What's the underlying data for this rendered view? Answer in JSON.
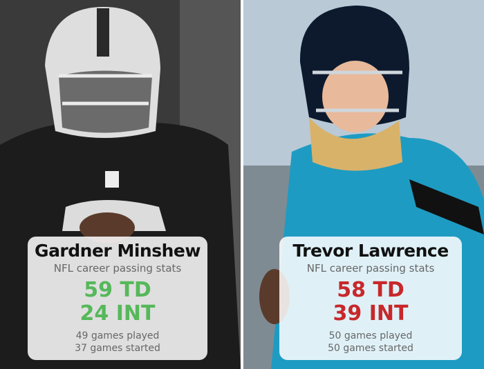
{
  "players": [
    {
      "name": "Gardner Minshew",
      "subtitle": "NFL career passing stats",
      "touchdowns": "59 TD",
      "interceptions": "24 INT",
      "games_played": "49 games played",
      "games_started": "37 games started"
    },
    {
      "name": "Trevor Lawrence",
      "subtitle": "NFL career passing stats",
      "touchdowns": "58 TD",
      "interceptions": "39 INT",
      "games_played": "50 games played",
      "games_started": "50 games started"
    }
  ]
}
